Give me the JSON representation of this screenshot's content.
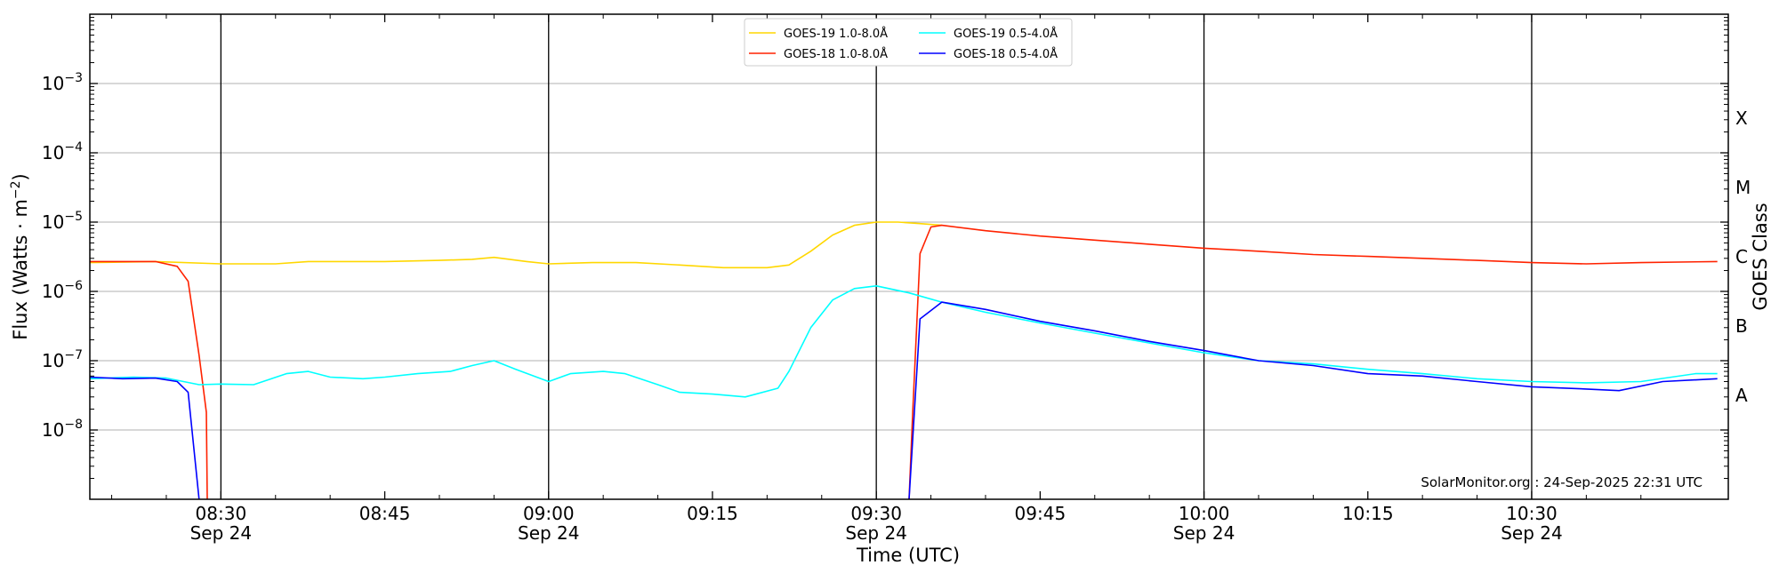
{
  "chart_data": {
    "type": "line",
    "xlabel": "Time (UTC)",
    "ylabel": "Flux (Watts · m",
    "ylabel_superscript": "−2",
    "ylabel_close": ")",
    "right_label": "GOES Class",
    "y_scale": "log",
    "x_range": [
      "08:18",
      "10:48"
    ],
    "ylim": [
      1e-09,
      0.01
    ],
    "y_ticks": [
      {
        "exp": "−8",
        "value": 1e-08
      },
      {
        "exp": "−7",
        "value": 1e-07
      },
      {
        "exp": "−6",
        "value": 1e-06
      },
      {
        "exp": "−5",
        "value": 1e-05
      },
      {
        "exp": "−4",
        "value": 0.0001
      },
      {
        "exp": "−3",
        "value": 0.001
      }
    ],
    "y_tick_base": "10",
    "x_ticks": [
      {
        "time": "08:30",
        "label": "08:30",
        "sublabel": "Sep 24"
      },
      {
        "time": "08:45",
        "label": "08:45",
        "sublabel": ""
      },
      {
        "time": "09:00",
        "label": "09:00",
        "sublabel": "Sep 24"
      },
      {
        "time": "09:15",
        "label": "09:15",
        "sublabel": ""
      },
      {
        "time": "09:30",
        "label": "09:30",
        "sublabel": "Sep 24"
      },
      {
        "time": "09:45",
        "label": "09:45",
        "sublabel": ""
      },
      {
        "time": "10:00",
        "label": "10:00",
        "sublabel": "Sep 24"
      },
      {
        "time": "10:15",
        "label": "10:15",
        "sublabel": ""
      },
      {
        "time": "10:30",
        "label": "10:30",
        "sublabel": "Sep 24"
      }
    ],
    "vertical_lines": [
      "08:30",
      "09:00",
      "09:30",
      "10:00",
      "10:30"
    ],
    "goes_classes": [
      {
        "label": "A",
        "value": 3.162e-08
      },
      {
        "label": "B",
        "value": 3.162e-07
      },
      {
        "label": "C",
        "value": 3.162e-06
      },
      {
        "label": "M",
        "value": 3.162e-05
      },
      {
        "label": "X",
        "value": 0.0003162
      }
    ],
    "grid": "horizontal",
    "legend_placement": "top-center",
    "footer": "SolarMonitor.org : 24-Sep-2025 22:31 UTC",
    "series": [
      {
        "name": "GOES-19 1.0-8.0Å",
        "color": "#ffd700",
        "points": [
          [
            "08:18",
            2.6e-06
          ],
          [
            "08:24",
            2.7e-06
          ],
          [
            "08:30",
            2.5e-06
          ],
          [
            "08:35",
            2.5e-06
          ],
          [
            "08:38",
            2.7e-06
          ],
          [
            "08:45",
            2.7e-06
          ],
          [
            "08:50",
            2.8e-06
          ],
          [
            "08:53",
            2.9e-06
          ],
          [
            "08:55",
            3.1e-06
          ],
          [
            "08:58",
            2.7e-06
          ],
          [
            "09:00",
            2.5e-06
          ],
          [
            "09:04",
            2.6e-06
          ],
          [
            "09:08",
            2.6e-06
          ],
          [
            "09:12",
            2.4e-06
          ],
          [
            "09:16",
            2.2e-06
          ],
          [
            "09:20",
            2.2e-06
          ],
          [
            "09:22",
            2.4e-06
          ],
          [
            "09:24",
            3.8e-06
          ],
          [
            "09:26",
            6.5e-06
          ],
          [
            "09:28",
            9e-06
          ],
          [
            "09:30",
            1e-05
          ],
          [
            "09:32",
            1e-05
          ],
          [
            "09:34",
            9.5e-06
          ],
          [
            "09:36",
            9e-06
          ]
        ]
      },
      {
        "name": "GOES-18 1.0-8.0Å",
        "color": "#ff2200",
        "points": [
          [
            "08:18",
            2.7e-06
          ],
          [
            "08:24",
            2.7e-06
          ],
          [
            "08:26",
            2.3e-06
          ],
          [
            "08:27",
            1.4e-06
          ],
          [
            "08:28",
            1.2e-07
          ],
          [
            "08:28:40",
            1.8e-08
          ],
          [
            "08:28:45",
            1e-09
          ],
          null,
          [
            "09:33",
            1e-09
          ],
          [
            "09:33:20",
            1.8e-08
          ],
          [
            "09:34",
            3.5e-06
          ],
          [
            "09:35",
            8.5e-06
          ],
          [
            "09:36",
            9e-06
          ],
          [
            "09:40",
            7.5e-06
          ],
          [
            "09:45",
            6.3e-06
          ],
          [
            "09:50",
            5.5e-06
          ],
          [
            "09:55",
            4.8e-06
          ],
          [
            "10:00",
            4.2e-06
          ],
          [
            "10:05",
            3.8e-06
          ],
          [
            "10:10",
            3.4e-06
          ],
          [
            "10:15",
            3.2e-06
          ],
          [
            "10:20",
            3e-06
          ],
          [
            "10:25",
            2.8e-06
          ],
          [
            "10:30",
            2.6e-06
          ],
          [
            "10:35",
            2.5e-06
          ],
          [
            "10:40",
            2.6e-06
          ],
          [
            "10:47",
            2.7e-06
          ]
        ]
      },
      {
        "name": "GOES-19 0.5-4.0Å",
        "color": "#00ffff",
        "points": [
          [
            "08:18",
            5.5e-08
          ],
          [
            "08:22",
            5.8e-08
          ],
          [
            "08:25",
            5.6e-08
          ],
          [
            "08:28",
            4.5e-08
          ],
          [
            "08:30",
            4.6e-08
          ],
          [
            "08:33",
            4.5e-08
          ],
          [
            "08:36",
            6.5e-08
          ],
          [
            "08:38",
            7e-08
          ],
          [
            "08:40",
            5.8e-08
          ],
          [
            "08:43",
            5.5e-08
          ],
          [
            "08:45",
            5.8e-08
          ],
          [
            "08:48",
            6.5e-08
          ],
          [
            "08:51",
            7e-08
          ],
          [
            "08:53",
            8.5e-08
          ],
          [
            "08:55",
            1e-07
          ],
          [
            "08:57",
            7.5e-08
          ],
          [
            "09:00",
            5e-08
          ],
          [
            "09:02",
            6.5e-08
          ],
          [
            "09:05",
            7e-08
          ],
          [
            "09:07",
            6.5e-08
          ],
          [
            "09:10",
            4.5e-08
          ],
          [
            "09:12",
            3.5e-08
          ],
          [
            "09:15",
            3.3e-08
          ],
          [
            "09:18",
            3e-08
          ],
          [
            "09:21",
            4e-08
          ],
          [
            "09:22",
            7e-08
          ],
          [
            "09:24",
            3e-07
          ],
          [
            "09:26",
            7.5e-07
          ],
          [
            "09:28",
            1.1e-06
          ],
          [
            "09:30",
            1.2e-06
          ],
          [
            "09:33",
            9.5e-07
          ],
          [
            "09:36",
            7e-07
          ],
          [
            "09:40",
            5e-07
          ],
          [
            "09:45",
            3.5e-07
          ],
          [
            "09:50",
            2.5e-07
          ],
          [
            "09:55",
            1.8e-07
          ],
          [
            "10:00",
            1.3e-07
          ],
          [
            "10:05",
            1e-07
          ],
          [
            "10:10",
            9e-08
          ],
          [
            "10:15",
            7.5e-08
          ],
          [
            "10:20",
            6.5e-08
          ],
          [
            "10:25",
            5.5e-08
          ],
          [
            "10:30",
            5e-08
          ],
          [
            "10:35",
            4.8e-08
          ],
          [
            "10:40",
            5e-08
          ],
          [
            "10:45",
            6.5e-08
          ],
          [
            "10:47",
            6.5e-08
          ]
        ]
      },
      {
        "name": "GOES-18 0.5-4.0Å",
        "color": "#0000ff",
        "points": [
          [
            "08:18",
            5.8e-08
          ],
          [
            "08:21",
            5.5e-08
          ],
          [
            "08:24",
            5.6e-08
          ],
          [
            "08:26",
            5e-08
          ],
          [
            "08:27",
            3.5e-08
          ],
          [
            "08:28",
            1e-09
          ],
          null,
          [
            "09:33",
            1e-09
          ],
          [
            "09:34",
            4e-07
          ],
          [
            "09:36",
            7e-07
          ],
          [
            "09:40",
            5.5e-07
          ],
          [
            "09:45",
            3.7e-07
          ],
          [
            "09:50",
            2.7e-07
          ],
          [
            "09:55",
            1.9e-07
          ],
          [
            "10:00",
            1.4e-07
          ],
          [
            "10:05",
            1e-07
          ],
          [
            "10:10",
            8.5e-08
          ],
          [
            "10:15",
            6.5e-08
          ],
          [
            "10:20",
            6e-08
          ],
          [
            "10:25",
            5e-08
          ],
          [
            "10:30",
            4.2e-08
          ],
          [
            "10:35",
            3.9e-08
          ],
          [
            "10:38",
            3.7e-08
          ],
          [
            "10:42",
            5e-08
          ],
          [
            "10:47",
            5.5e-08
          ]
        ]
      }
    ]
  }
}
